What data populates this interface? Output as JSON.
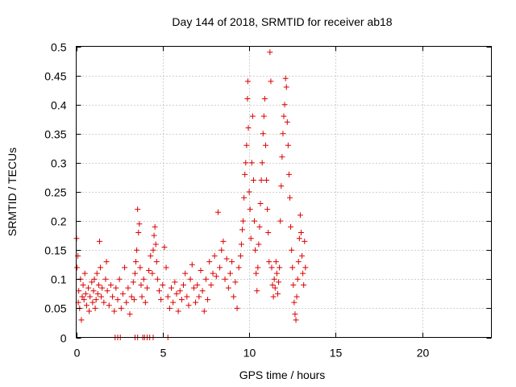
{
  "chart_data": {
    "type": "scatter",
    "title": "Day 144 of 2018, SRMTID for receiver ab18",
    "xlabel": "GPS time / hours",
    "ylabel": "SRMTID / TECUs",
    "xlim": [
      0,
      24
    ],
    "ylim": [
      0,
      0.5
    ],
    "xticks": [
      0,
      5,
      10,
      15,
      20
    ],
    "xtick_labels": [
      "0",
      "5",
      "10",
      "15",
      "20"
    ],
    "yticks": [
      0,
      0.05,
      0.1,
      0.15,
      0.2,
      0.25,
      0.3,
      0.35,
      0.4,
      0.45,
      0.5
    ],
    "ytick_labels": [
      "0",
      "0.05",
      "0.1",
      "0.15",
      "0.2",
      "0.25",
      "0.3",
      "0.35",
      "0.4",
      "0.45",
      "0.5"
    ],
    "grid": true,
    "marker": "+",
    "color": "#dd0000",
    "series": [
      {
        "name": "SRMTID",
        "points": [
          [
            0.02,
            0.17
          ],
          [
            0.05,
            0.12
          ],
          [
            0.1,
            0.14
          ],
          [
            0.12,
            0.06
          ],
          [
            0.15,
            0.08
          ],
          [
            0.2,
            0.05
          ],
          [
            0.25,
            0.1
          ],
          [
            0.3,
            0.03
          ],
          [
            0.35,
            0.07
          ],
          [
            0.4,
            0.09
          ],
          [
            0.45,
            0.065
          ],
          [
            0.5,
            0.11
          ],
          [
            0.55,
            0.075
          ],
          [
            0.6,
            0.055
          ],
          [
            0.7,
            0.085
          ],
          [
            0.75,
            0.045
          ],
          [
            0.8,
            0.07
          ],
          [
            0.9,
            0.095
          ],
          [
            0.95,
            0.06
          ],
          [
            1.0,
            0.08
          ],
          [
            1.05,
            0.1
          ],
          [
            1.1,
            0.05
          ],
          [
            1.15,
            0.065
          ],
          [
            1.2,
            0.11
          ],
          [
            1.25,
            0.075
          ],
          [
            1.3,
            0.09
          ],
          [
            1.35,
            0.165
          ],
          [
            1.4,
            0.12
          ],
          [
            1.45,
            0.07
          ],
          [
            1.5,
            0.085
          ],
          [
            1.6,
            0.06
          ],
          [
            1.7,
            0.1
          ],
          [
            1.75,
            0.13
          ],
          [
            1.8,
            0.08
          ],
          [
            1.9,
            0.055
          ],
          [
            2.0,
            0.09
          ],
          [
            2.1,
            0.07
          ],
          [
            2.2,
            0.045
          ],
          [
            2.3,
            0.085
          ],
          [
            2.4,
            0.065
          ],
          [
            2.5,
            0.1
          ],
          [
            2.6,
            0.05
          ],
          [
            2.7,
            0.075
          ],
          [
            2.8,
            0.12
          ],
          [
            2.9,
            0.06
          ],
          [
            3.0,
            0.085
          ],
          [
            3.1,
            0.04
          ],
          [
            3.2,
            0.07
          ],
          [
            3.3,
            0.095
          ],
          [
            3.35,
            0.065
          ],
          [
            3.4,
            0.11
          ],
          [
            3.45,
            0.13
          ],
          [
            3.5,
            0.15
          ],
          [
            3.55,
            0.22
          ],
          [
            3.6,
            0.18
          ],
          [
            3.65,
            0.195
          ],
          [
            3.7,
            0.12
          ],
          [
            3.75,
            0.09
          ],
          [
            3.8,
            0.07
          ],
          [
            3.9,
            0.1
          ],
          [
            4.0,
            0.06
          ],
          [
            4.1,
            0.085
          ],
          [
            4.2,
            0.115
          ],
          [
            4.3,
            0.14
          ],
          [
            4.4,
            0.11
          ],
          [
            4.45,
            0.15
          ],
          [
            4.5,
            0.175
          ],
          [
            4.55,
            0.19
          ],
          [
            4.6,
            0.16
          ],
          [
            4.65,
            0.13
          ],
          [
            4.7,
            0.1
          ],
          [
            4.8,
            0.08
          ],
          [
            4.9,
            0.065
          ],
          [
            5.0,
            0.09
          ],
          [
            5.1,
            0.155
          ],
          [
            5.2,
            0.12
          ],
          [
            5.3,
            0.07
          ],
          [
            5.4,
            0.05
          ],
          [
            5.5,
            0.085
          ],
          [
            5.6,
            0.06
          ],
          [
            5.7,
            0.095
          ],
          [
            5.8,
            0.075
          ],
          [
            5.9,
            0.045
          ],
          [
            6.0,
            0.08
          ],
          [
            6.1,
            0.065
          ],
          [
            6.2,
            0.09
          ],
          [
            6.3,
            0.11
          ],
          [
            6.4,
            0.07
          ],
          [
            6.5,
            0.055
          ],
          [
            6.6,
            0.1
          ],
          [
            6.7,
            0.125
          ],
          [
            6.8,
            0.085
          ],
          [
            6.9,
            0.06
          ],
          [
            7.0,
            0.09
          ],
          [
            7.1,
            0.07
          ],
          [
            7.2,
            0.115
          ],
          [
            7.3,
            0.08
          ],
          [
            7.4,
            0.045
          ],
          [
            7.5,
            0.1
          ],
          [
            7.6,
            0.065
          ],
          [
            7.7,
            0.13
          ],
          [
            7.8,
            0.09
          ],
          [
            7.9,
            0.11
          ],
          [
            8.0,
            0.14
          ],
          [
            8.1,
            0.105
          ],
          [
            8.2,
            0.215
          ],
          [
            8.3,
            0.12
          ],
          [
            8.4,
            0.15
          ],
          [
            8.5,
            0.165
          ],
          [
            8.6,
            0.1
          ],
          [
            8.7,
            0.135
          ],
          [
            8.8,
            0.085
          ],
          [
            8.9,
            0.11
          ],
          [
            9.0,
            0.13
          ],
          [
            9.1,
            0.07
          ],
          [
            9.2,
            0.095
          ],
          [
            9.3,
            0.05
          ],
          [
            9.4,
            0.12
          ],
          [
            9.5,
            0.14
          ],
          [
            9.55,
            0.16
          ],
          [
            9.6,
            0.185
          ],
          [
            9.65,
            0.2
          ],
          [
            9.7,
            0.24
          ],
          [
            9.75,
            0.28
          ],
          [
            9.8,
            0.3
          ],
          [
            9.85,
            0.33
          ],
          [
            9.9,
            0.41
          ],
          [
            9.92,
            0.44
          ],
          [
            9.95,
            0.36
          ],
          [
            10.0,
            0.25
          ],
          [
            10.05,
            0.22
          ],
          [
            10.1,
            0.17
          ],
          [
            10.15,
            0.3
          ],
          [
            10.2,
            0.38
          ],
          [
            10.25,
            0.27
          ],
          [
            10.3,
            0.2
          ],
          [
            10.35,
            0.15
          ],
          [
            10.4,
            0.11
          ],
          [
            10.45,
            0.08
          ],
          [
            10.5,
            0.12
          ],
          [
            10.55,
            0.16
          ],
          [
            10.6,
            0.19
          ],
          [
            10.65,
            0.23
          ],
          [
            10.7,
            0.27
          ],
          [
            10.75,
            0.3
          ],
          [
            10.8,
            0.35
          ],
          [
            10.85,
            0.38
          ],
          [
            10.9,
            0.41
          ],
          [
            10.95,
            0.33
          ],
          [
            11.0,
            0.27
          ],
          [
            11.05,
            0.22
          ],
          [
            11.1,
            0.18
          ],
          [
            11.15,
            0.13
          ],
          [
            11.2,
            0.49
          ],
          [
            11.25,
            0.44
          ],
          [
            11.3,
            0.12
          ],
          [
            11.35,
            0.09
          ],
          [
            11.4,
            0.07
          ],
          [
            11.45,
            0.1
          ],
          [
            11.5,
            0.085
          ],
          [
            11.55,
            0.13
          ],
          [
            11.6,
            0.11
          ],
          [
            11.65,
            0.075
          ],
          [
            11.7,
            0.095
          ],
          [
            11.75,
            0.12
          ],
          [
            11.8,
            0.2
          ],
          [
            11.85,
            0.26
          ],
          [
            11.9,
            0.31
          ],
          [
            11.95,
            0.35
          ],
          [
            12.0,
            0.38
          ],
          [
            12.05,
            0.4
          ],
          [
            12.1,
            0.445
          ],
          [
            12.15,
            0.43
          ],
          [
            12.2,
            0.37
          ],
          [
            12.25,
            0.33
          ],
          [
            12.3,
            0.28
          ],
          [
            12.35,
            0.24
          ],
          [
            12.4,
            0.19
          ],
          [
            12.45,
            0.15
          ],
          [
            12.5,
            0.12
          ],
          [
            12.55,
            0.09
          ],
          [
            12.6,
            0.06
          ],
          [
            12.65,
            0.04
          ],
          [
            12.7,
            0.03
          ],
          [
            12.75,
            0.07
          ],
          [
            12.8,
            0.1
          ],
          [
            12.85,
            0.13
          ],
          [
            12.9,
            0.17
          ],
          [
            12.95,
            0.21
          ],
          [
            13.0,
            0.18
          ],
          [
            13.05,
            0.14
          ],
          [
            13.1,
            0.11
          ],
          [
            13.15,
            0.09
          ],
          [
            13.2,
            0.165
          ],
          [
            13.25,
            0.12
          ],
          [
            2.25,
            0.0
          ],
          [
            2.4,
            0.0
          ],
          [
            2.55,
            0.0
          ],
          [
            3.4,
            0.0
          ],
          [
            3.55,
            0.0
          ],
          [
            3.85,
            0.0
          ],
          [
            3.95,
            0.0
          ],
          [
            4.1,
            0.0
          ],
          [
            4.25,
            0.0
          ],
          [
            4.45,
            0.0
          ],
          [
            5.3,
            0.0
          ]
        ]
      }
    ]
  }
}
